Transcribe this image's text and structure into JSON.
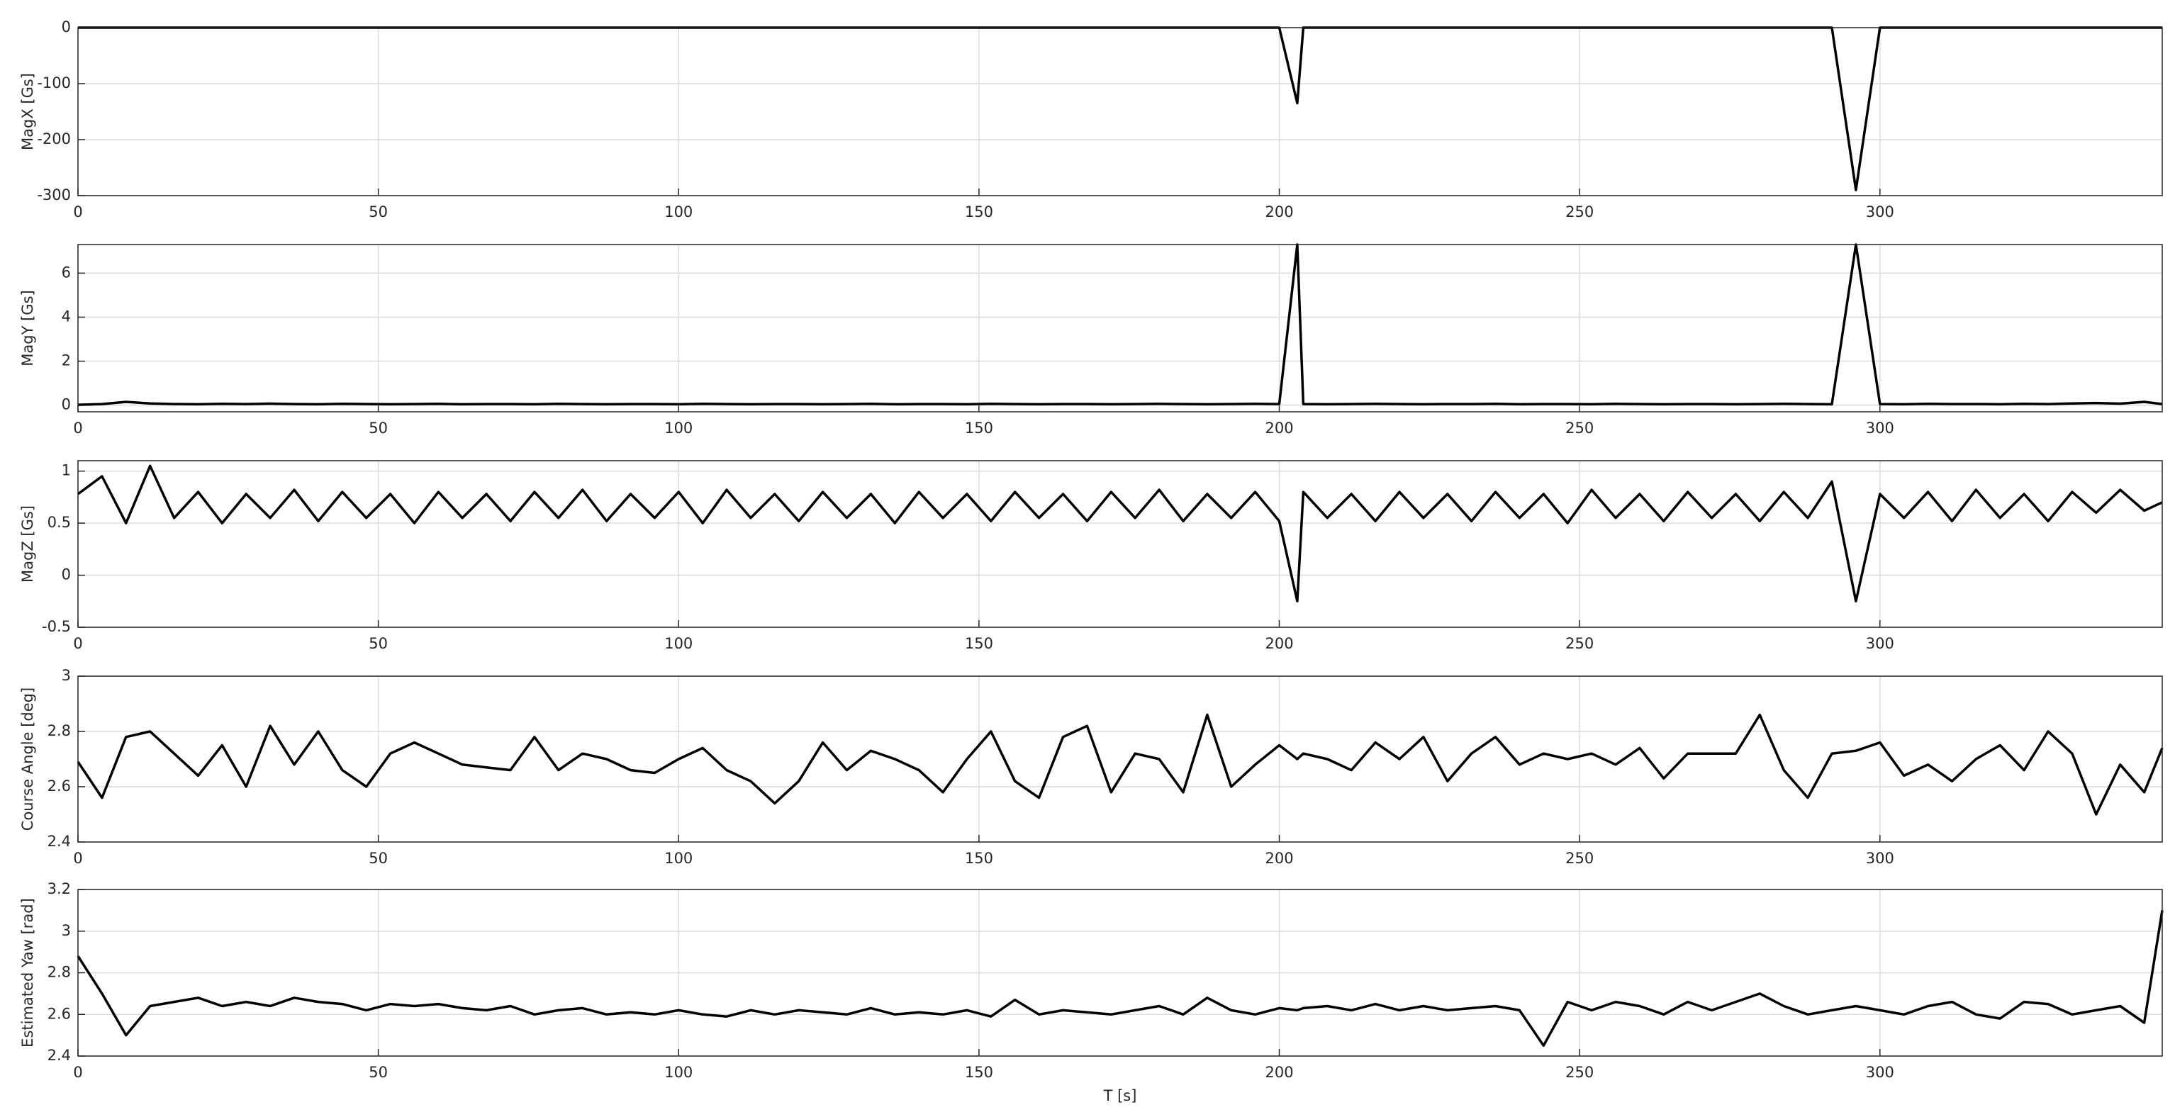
{
  "chart_data": [
    {
      "type": "line",
      "ylabel": "MagX [Gs]",
      "xlim": [
        0,
        347
      ],
      "xticks": [
        0,
        50,
        100,
        150,
        200,
        250,
        300
      ],
      "ylim": [
        -300,
        0
      ],
      "yticks": [
        -300,
        -200,
        -100,
        0
      ],
      "grid": true,
      "x": [
        0,
        4,
        8,
        12,
        16,
        20,
        24,
        28,
        32,
        36,
        40,
        44,
        48,
        52,
        56,
        60,
        64,
        68,
        72,
        76,
        80,
        84,
        88,
        92,
        96,
        100,
        104,
        108,
        112,
        116,
        120,
        124,
        128,
        132,
        136,
        140,
        144,
        148,
        152,
        156,
        160,
        164,
        168,
        172,
        176,
        180,
        184,
        188,
        192,
        196,
        200,
        203,
        204,
        208,
        212,
        216,
        220,
        224,
        228,
        232,
        236,
        240,
        244,
        248,
        252,
        256,
        260,
        264,
        268,
        272,
        276,
        280,
        284,
        288,
        292,
        296,
        300,
        304,
        308,
        312,
        316,
        320,
        324,
        328,
        332,
        336,
        340,
        344,
        347
      ],
      "series": [
        {
          "color": "#000000",
          "values": [
            0,
            0,
            0,
            0,
            0,
            0,
            0,
            0,
            0,
            0,
            0,
            0,
            0,
            0,
            0,
            0,
            0,
            0,
            0,
            0,
            0,
            0,
            0,
            0,
            0,
            0,
            0,
            0,
            0,
            0,
            0,
            0,
            0,
            0,
            0,
            0,
            0,
            0,
            0,
            0,
            0,
            0,
            0,
            0,
            0,
            0,
            0,
            0,
            0,
            0,
            0,
            -135,
            0,
            0,
            0,
            0,
            0,
            0,
            0,
            0,
            0,
            0,
            0,
            0,
            0,
            0,
            0,
            0,
            0,
            0,
            0,
            0,
            0,
            0,
            0,
            -290,
            0,
            0,
            0,
            0,
            0,
            0,
            0,
            0,
            0,
            0,
            0,
            0,
            0
          ]
        }
      ]
    },
    {
      "type": "line",
      "ylabel": "MagY [Gs]",
      "xlim": [
        0,
        347
      ],
      "xticks": [
        0,
        50,
        100,
        150,
        200,
        250,
        300
      ],
      "ylim": [
        -0.3,
        7.3
      ],
      "yticks": [
        0,
        2,
        4,
        6
      ],
      "grid": true,
      "x": [
        0,
        4,
        8,
        12,
        16,
        20,
        24,
        28,
        32,
        36,
        40,
        44,
        48,
        52,
        56,
        60,
        64,
        68,
        72,
        76,
        80,
        84,
        88,
        92,
        96,
        100,
        104,
        108,
        112,
        116,
        120,
        124,
        128,
        132,
        136,
        140,
        144,
        148,
        152,
        156,
        160,
        164,
        168,
        172,
        176,
        180,
        184,
        188,
        192,
        196,
        200,
        203,
        204,
        208,
        212,
        216,
        220,
        224,
        228,
        232,
        236,
        240,
        244,
        248,
        252,
        256,
        260,
        264,
        268,
        272,
        276,
        280,
        284,
        288,
        292,
        296,
        300,
        304,
        308,
        312,
        316,
        320,
        324,
        328,
        332,
        336,
        340,
        344,
        347
      ],
      "series": [
        {
          "color": "#000000",
          "values": [
            0.02,
            0.05,
            0.15,
            0.08,
            0.05,
            0.04,
            0.06,
            0.05,
            0.07,
            0.05,
            0.04,
            0.06,
            0.05,
            0.04,
            0.05,
            0.06,
            0.04,
            0.05,
            0.05,
            0.04,
            0.06,
            0.05,
            0.04,
            0.05,
            0.05,
            0.04,
            0.06,
            0.05,
            0.04,
            0.05,
            0.05,
            0.04,
            0.05,
            0.06,
            0.04,
            0.05,
            0.05,
            0.04,
            0.06,
            0.05,
            0.04,
            0.05,
            0.05,
            0.04,
            0.05,
            0.06,
            0.05,
            0.04,
            0.05,
            0.06,
            0.05,
            7.3,
            0.05,
            0.04,
            0.05,
            0.06,
            0.05,
            0.04,
            0.05,
            0.05,
            0.06,
            0.04,
            0.05,
            0.05,
            0.04,
            0.06,
            0.05,
            0.04,
            0.05,
            0.05,
            0.04,
            0.05,
            0.06,
            0.05,
            0.04,
            7.3,
            0.05,
            0.04,
            0.06,
            0.05,
            0.05,
            0.04,
            0.06,
            0.05,
            0.08,
            0.1,
            0.07,
            0.15,
            0.05
          ]
        }
      ]
    },
    {
      "type": "line",
      "ylabel": "MagZ [Gs]",
      "xlim": [
        0,
        347
      ],
      "xticks": [
        0,
        50,
        100,
        150,
        200,
        250,
        300
      ],
      "ylim": [
        -0.5,
        1.1
      ],
      "yticks": [
        -0.5,
        0,
        0.5,
        1
      ],
      "grid": true,
      "x": [
        0,
        4,
        8,
        12,
        16,
        20,
        24,
        28,
        32,
        36,
        40,
        44,
        48,
        52,
        56,
        60,
        64,
        68,
        72,
        76,
        80,
        84,
        88,
        92,
        96,
        100,
        104,
        108,
        112,
        116,
        120,
        124,
        128,
        132,
        136,
        140,
        144,
        148,
        152,
        156,
        160,
        164,
        168,
        172,
        176,
        180,
        184,
        188,
        192,
        196,
        200,
        203,
        204,
        208,
        212,
        216,
        220,
        224,
        228,
        232,
        236,
        240,
        244,
        248,
        252,
        256,
        260,
        264,
        268,
        272,
        276,
        280,
        284,
        288,
        292,
        296,
        300,
        304,
        308,
        312,
        316,
        320,
        324,
        328,
        332,
        336,
        340,
        344,
        347
      ],
      "series": [
        {
          "color": "#000000",
          "values": [
            0.78,
            0.95,
            0.5,
            1.05,
            0.55,
            0.8,
            0.5,
            0.78,
            0.55,
            0.82,
            0.52,
            0.8,
            0.55,
            0.78,
            0.5,
            0.8,
            0.55,
            0.78,
            0.52,
            0.8,
            0.55,
            0.82,
            0.52,
            0.78,
            0.55,
            0.8,
            0.5,
            0.82,
            0.55,
            0.78,
            0.52,
            0.8,
            0.55,
            0.78,
            0.5,
            0.8,
            0.55,
            0.78,
            0.52,
            0.8,
            0.55,
            0.78,
            0.52,
            0.8,
            0.55,
            0.82,
            0.52,
            0.78,
            0.55,
            0.8,
            0.52,
            -0.25,
            0.8,
            0.55,
            0.78,
            0.52,
            0.8,
            0.55,
            0.78,
            0.52,
            0.8,
            0.55,
            0.78,
            0.5,
            0.82,
            0.55,
            0.78,
            0.52,
            0.8,
            0.55,
            0.78,
            0.52,
            0.8,
            0.55,
            0.9,
            -0.25,
            0.78,
            0.55,
            0.8,
            0.52,
            0.82,
            0.55,
            0.78,
            0.52,
            0.8,
            0.6,
            0.82,
            0.62,
            0.7
          ]
        }
      ]
    },
    {
      "type": "line",
      "ylabel": "Course Angle [deg]",
      "xlim": [
        0,
        347
      ],
      "xticks": [
        0,
        50,
        100,
        150,
        200,
        250,
        300
      ],
      "ylim": [
        2.4,
        3
      ],
      "yticks": [
        2.4,
        2.6,
        2.8,
        3
      ],
      "grid": true,
      "x": [
        0,
        4,
        8,
        12,
        16,
        20,
        24,
        28,
        32,
        36,
        40,
        44,
        48,
        52,
        56,
        60,
        64,
        68,
        72,
        76,
        80,
        84,
        88,
        92,
        96,
        100,
        104,
        108,
        112,
        116,
        120,
        124,
        128,
        132,
        136,
        140,
        144,
        148,
        152,
        156,
        160,
        164,
        168,
        172,
        176,
        180,
        184,
        188,
        192,
        196,
        200,
        203,
        204,
        208,
        212,
        216,
        220,
        224,
        228,
        232,
        236,
        240,
        244,
        248,
        252,
        256,
        260,
        264,
        268,
        272,
        276,
        280,
        284,
        288,
        292,
        296,
        300,
        304,
        308,
        312,
        316,
        320,
        324,
        328,
        332,
        336,
        340,
        344,
        347
      ],
      "series": [
        {
          "color": "#000000",
          "values": [
            2.69,
            2.56,
            2.78,
            2.8,
            2.72,
            2.64,
            2.75,
            2.6,
            2.82,
            2.68,
            2.8,
            2.66,
            2.6,
            2.72,
            2.76,
            2.72,
            2.68,
            2.67,
            2.66,
            2.78,
            2.66,
            2.72,
            2.7,
            2.66,
            2.65,
            2.7,
            2.74,
            2.66,
            2.62,
            2.54,
            2.62,
            2.76,
            2.66,
            2.73,
            2.7,
            2.66,
            2.58,
            2.7,
            2.8,
            2.62,
            2.56,
            2.78,
            2.82,
            2.58,
            2.72,
            2.7,
            2.58,
            2.86,
            2.6,
            2.68,
            2.75,
            2.7,
            2.72,
            2.7,
            2.66,
            2.76,
            2.7,
            2.78,
            2.62,
            2.72,
            2.78,
            2.68,
            2.72,
            2.7,
            2.72,
            2.68,
            2.74,
            2.63,
            2.72,
            2.72,
            2.72,
            2.86,
            2.66,
            2.56,
            2.72,
            2.73,
            2.76,
            2.64,
            2.68,
            2.62,
            2.7,
            2.75,
            2.66,
            2.8,
            2.72,
            2.5,
            2.68,
            2.58,
            2.74
          ]
        }
      ]
    },
    {
      "type": "line",
      "ylabel": "Estimated Yaw [rad]",
      "xlabel": "T [s]",
      "xlim": [
        0,
        347
      ],
      "xticks": [
        0,
        50,
        100,
        150,
        200,
        250,
        300
      ],
      "ylim": [
        2.4,
        3.2
      ],
      "yticks": [
        2.4,
        2.6,
        2.8,
        3,
        3.2
      ],
      "grid": true,
      "x": [
        0,
        4,
        8,
        12,
        16,
        20,
        24,
        28,
        32,
        36,
        40,
        44,
        48,
        52,
        56,
        60,
        64,
        68,
        72,
        76,
        80,
        84,
        88,
        92,
        96,
        100,
        104,
        108,
        112,
        116,
        120,
        124,
        128,
        132,
        136,
        140,
        144,
        148,
        152,
        156,
        160,
        164,
        168,
        172,
        176,
        180,
        184,
        188,
        192,
        196,
        200,
        203,
        204,
        208,
        212,
        216,
        220,
        224,
        228,
        232,
        236,
        240,
        244,
        248,
        252,
        256,
        260,
        264,
        268,
        272,
        276,
        280,
        284,
        288,
        292,
        296,
        300,
        304,
        308,
        312,
        316,
        320,
        324,
        328,
        332,
        336,
        340,
        344,
        347
      ],
      "series": [
        {
          "color": "#000000",
          "values": [
            2.88,
            2.7,
            2.5,
            2.64,
            2.66,
            2.68,
            2.64,
            2.66,
            2.64,
            2.68,
            2.66,
            2.65,
            2.62,
            2.65,
            2.64,
            2.65,
            2.63,
            2.62,
            2.64,
            2.6,
            2.62,
            2.63,
            2.6,
            2.61,
            2.6,
            2.62,
            2.6,
            2.59,
            2.62,
            2.6,
            2.62,
            2.61,
            2.6,
            2.63,
            2.6,
            2.61,
            2.6,
            2.62,
            2.59,
            2.67,
            2.6,
            2.62,
            2.61,
            2.6,
            2.62,
            2.64,
            2.6,
            2.68,
            2.62,
            2.6,
            2.63,
            2.62,
            2.63,
            2.64,
            2.62,
            2.65,
            2.62,
            2.64,
            2.62,
            2.63,
            2.64,
            2.62,
            2.45,
            2.66,
            2.62,
            2.66,
            2.64,
            2.6,
            2.66,
            2.62,
            2.66,
            2.7,
            2.64,
            2.6,
            2.62,
            2.64,
            2.62,
            2.6,
            2.64,
            2.66,
            2.6,
            2.58,
            2.66,
            2.65,
            2.6,
            2.62,
            2.64,
            2.56,
            3.1
          ]
        }
      ]
    }
  ]
}
